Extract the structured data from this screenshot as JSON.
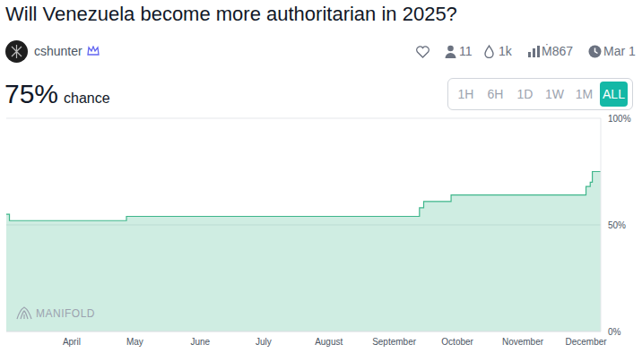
{
  "header": {
    "title": "Will Venezuela become more authoritarian in 2025?",
    "creator": "cshunter",
    "stats": {
      "traders": "11",
      "liquidity": "1k",
      "volume": "Ṁ867",
      "close_date": "Mar 1"
    },
    "probability": "75%",
    "probability_caption": "chance",
    "time_buttons": [
      "1H",
      "6H",
      "1D",
      "1W",
      "1M",
      "ALL"
    ],
    "selected_button": "ALL",
    "watermark": "MANIFOLD"
  },
  "chart_data": {
    "type": "area",
    "line_style": "step",
    "color": "#3fb68b",
    "grid": true,
    "x": [
      60,
      61.5,
      117,
      256,
      258,
      271,
      335,
      337,
      338,
      342
    ],
    "values": [
      55,
      52,
      54,
      58,
      61,
      64,
      68,
      70,
      75,
      75
    ],
    "xlim": [
      60,
      342
    ],
    "xticks": [
      {
        "value": 91,
        "label": "April"
      },
      {
        "value": 121,
        "label": "May"
      },
      {
        "value": 152,
        "label": "June"
      },
      {
        "value": 182,
        "label": "July"
      },
      {
        "value": 213,
        "label": "August"
      },
      {
        "value": 244,
        "label": "September"
      },
      {
        "value": 274,
        "label": "October"
      },
      {
        "value": 305,
        "label": "November"
      },
      {
        "value": 335,
        "label": "December"
      }
    ],
    "ylim": [
      0,
      100
    ],
    "yticks": [
      {
        "value": 0,
        "label": "0%"
      },
      {
        "value": 50,
        "label": "50%"
      },
      {
        "value": 100,
        "label": "100%"
      }
    ]
  }
}
